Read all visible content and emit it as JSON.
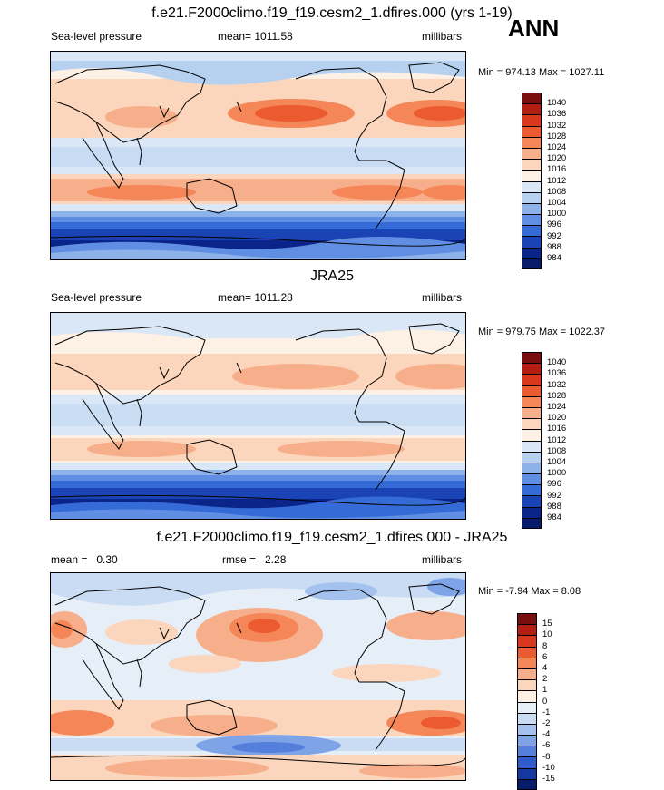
{
  "season": "ANN",
  "panels": [
    {
      "id": "model",
      "title": "f.e21.F2000climo.f19_f19.cesm2_1.dfires.000 (yrs 1-19)",
      "left_label": "Sea-level pressure",
      "center_label": "mean= 1011.58",
      "right_label": "millibars",
      "minmax": "Min = 974.13 Max = 1027.11",
      "colorbar_labels": [
        "1040",
        "1036",
        "1032",
        "1028",
        "1024",
        "1020",
        "1016",
        "1012",
        "1008",
        "1004",
        "1000",
        "996",
        "992",
        "988",
        "984"
      ],
      "colorbar_colors": [
        "#7a0d0d",
        "#b41e12",
        "#d9371e",
        "#ec5a2f",
        "#f48657",
        "#f7ae8a",
        "#fbd6bd",
        "#fdf0e4",
        "#d9e7f6",
        "#b6d0f0",
        "#8db2ea",
        "#5f8ee2",
        "#356bd6",
        "#1a44b5",
        "#0b248a",
        "#061b6a"
      ]
    },
    {
      "id": "obs",
      "title": "JRA25",
      "left_label": "Sea-level pressure",
      "center_label": "mean= 1011.28",
      "right_label": "millibars",
      "minmax": "Min = 979.75 Max = 1022.37",
      "colorbar_labels": [
        "1040",
        "1036",
        "1032",
        "1028",
        "1024",
        "1020",
        "1016",
        "1012",
        "1008",
        "1004",
        "1000",
        "996",
        "992",
        "988",
        "984"
      ],
      "colorbar_colors": [
        "#7a0d0d",
        "#b41e12",
        "#d9371e",
        "#ec5a2f",
        "#f48657",
        "#f7ae8a",
        "#fbd6bd",
        "#fdf0e4",
        "#d9e7f6",
        "#b6d0f0",
        "#8db2ea",
        "#5f8ee2",
        "#356bd6",
        "#1a44b5",
        "#0b248a",
        "#061b6a"
      ]
    },
    {
      "id": "diff",
      "title": "f.e21.F2000climo.f19_f19.cesm2_1.dfires.000 - JRA25",
      "left_label": "mean =   0.30",
      "center_label": "rmse =   2.28",
      "right_label": "millibars",
      "minmax": "Min =  -7.94 Max =   8.08",
      "colorbar_labels": [
        "15",
        "10",
        "8",
        "6",
        "4",
        "2",
        "1",
        "0",
        "-1",
        "-2",
        "-4",
        "-6",
        "-8",
        "-10",
        "-15"
      ],
      "colorbar_colors": [
        "#7a0d0d",
        "#b41e12",
        "#d9371e",
        "#ec5a2f",
        "#f48657",
        "#f7ae8a",
        "#fbd6bd",
        "#fdf0e4",
        "#e6eef8",
        "#c9dcf3",
        "#a5c2ee",
        "#7ea4e7",
        "#557fdd",
        "#2f5ccb",
        "#1537a2",
        "#061b6a"
      ]
    }
  ]
}
